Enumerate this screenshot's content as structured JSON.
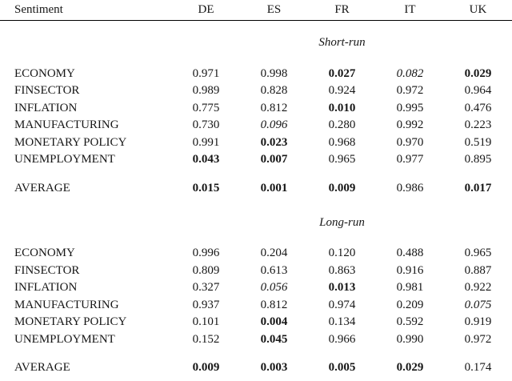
{
  "table": {
    "header": {
      "label": "Sentiment",
      "columns": [
        "DE",
        "ES",
        "FR",
        "IT",
        "UK"
      ]
    },
    "sections": [
      {
        "title": "Short-run",
        "rows": [
          {
            "label": "ECONOMY",
            "cells": [
              {
                "text": "0.971",
                "style": "normal"
              },
              {
                "text": "0.998",
                "style": "normal"
              },
              {
                "text": "0.027",
                "style": "bold"
              },
              {
                "text": "0.082",
                "style": "italic"
              },
              {
                "text": "0.029",
                "style": "bold"
              }
            ]
          },
          {
            "label": "FINSECTOR",
            "cells": [
              {
                "text": "0.989",
                "style": "normal"
              },
              {
                "text": "0.828",
                "style": "normal"
              },
              {
                "text": "0.924",
                "style": "normal"
              },
              {
                "text": "0.972",
                "style": "normal"
              },
              {
                "text": "0.964",
                "style": "normal"
              }
            ]
          },
          {
            "label": "INFLATION",
            "cells": [
              {
                "text": "0.775",
                "style": "normal"
              },
              {
                "text": "0.812",
                "style": "normal"
              },
              {
                "text": "0.010",
                "style": "bold"
              },
              {
                "text": "0.995",
                "style": "normal"
              },
              {
                "text": "0.476",
                "style": "normal"
              }
            ]
          },
          {
            "label": "MANUFACTURING",
            "cells": [
              {
                "text": "0.730",
                "style": "normal"
              },
              {
                "text": "0.096",
                "style": "italic"
              },
              {
                "text": "0.280",
                "style": "normal"
              },
              {
                "text": "0.992",
                "style": "normal"
              },
              {
                "text": "0.223",
                "style": "normal"
              }
            ]
          },
          {
            "label": "MONETARY POLICY",
            "cells": [
              {
                "text": "0.991",
                "style": "normal"
              },
              {
                "text": "0.023",
                "style": "bold"
              },
              {
                "text": "0.968",
                "style": "normal"
              },
              {
                "text": "0.970",
                "style": "normal"
              },
              {
                "text": "0.519",
                "style": "normal"
              }
            ]
          },
          {
            "label": "UNEMPLOYMENT",
            "cells": [
              {
                "text": "0.043",
                "style": "bold"
              },
              {
                "text": "0.007",
                "style": "bold"
              },
              {
                "text": "0.965",
                "style": "normal"
              },
              {
                "text": "0.977",
                "style": "normal"
              },
              {
                "text": "0.895",
                "style": "normal"
              }
            ]
          },
          {
            "label": "AVERAGE",
            "cells": [
              {
                "text": "0.015",
                "style": "bold"
              },
              {
                "text": "0.001",
                "style": "bold"
              },
              {
                "text": "0.009",
                "style": "bold"
              },
              {
                "text": "0.986",
                "style": "normal"
              },
              {
                "text": "0.017",
                "style": "bold"
              }
            ]
          }
        ]
      },
      {
        "title": "Long-run",
        "rows": [
          {
            "label": "ECONOMY",
            "cells": [
              {
                "text": "0.996",
                "style": "normal"
              },
              {
                "text": "0.204",
                "style": "normal"
              },
              {
                "text": "0.120",
                "style": "normal"
              },
              {
                "text": "0.488",
                "style": "normal"
              },
              {
                "text": "0.965",
                "style": "normal"
              }
            ]
          },
          {
            "label": "FINSECTOR",
            "cells": [
              {
                "text": "0.809",
                "style": "normal"
              },
              {
                "text": "0.613",
                "style": "normal"
              },
              {
                "text": "0.863",
                "style": "normal"
              },
              {
                "text": "0.916",
                "style": "normal"
              },
              {
                "text": "0.887",
                "style": "normal"
              }
            ]
          },
          {
            "label": "INFLATION",
            "cells": [
              {
                "text": "0.327",
                "style": "normal"
              },
              {
                "text": "0.056",
                "style": "italic"
              },
              {
                "text": "0.013",
                "style": "bold"
              },
              {
                "text": "0.981",
                "style": "normal"
              },
              {
                "text": "0.922",
                "style": "normal"
              }
            ]
          },
          {
            "label": "MANUFACTURING",
            "cells": [
              {
                "text": "0.937",
                "style": "normal"
              },
              {
                "text": "0.812",
                "style": "normal"
              },
              {
                "text": "0.974",
                "style": "normal"
              },
              {
                "text": "0.209",
                "style": "normal"
              },
              {
                "text": "0.075",
                "style": "italic"
              }
            ]
          },
          {
            "label": "MONETARY POLICY",
            "cells": [
              {
                "text": "0.101",
                "style": "normal"
              },
              {
                "text": "0.004",
                "style": "bold"
              },
              {
                "text": "0.134",
                "style": "normal"
              },
              {
                "text": "0.592",
                "style": "normal"
              },
              {
                "text": "0.919",
                "style": "normal"
              }
            ]
          },
          {
            "label": "UNEMPLOYMENT",
            "cells": [
              {
                "text": "0.152",
                "style": "normal"
              },
              {
                "text": "0.045",
                "style": "bold"
              },
              {
                "text": "0.966",
                "style": "normal"
              },
              {
                "text": "0.990",
                "style": "normal"
              },
              {
                "text": "0.972",
                "style": "normal"
              }
            ]
          },
          {
            "label": "AVERAGE",
            "cells": [
              {
                "text": "0.009",
                "style": "bold"
              },
              {
                "text": "0.003",
                "style": "bold"
              },
              {
                "text": "0.005",
                "style": "bold"
              },
              {
                "text": "0.029",
                "style": "bold"
              },
              {
                "text": "0.174",
                "style": "normal"
              }
            ]
          }
        ]
      }
    ]
  },
  "chart_data": {
    "type": "table",
    "columns": [
      "Sentiment",
      "DE",
      "ES",
      "FR",
      "IT",
      "UK"
    ],
    "sections": [
      {
        "title": "Short-run",
        "rows": [
          [
            "ECONOMY",
            0.971,
            0.998,
            0.027,
            0.082,
            0.029
          ],
          [
            "FINSECTOR",
            0.989,
            0.828,
            0.924,
            0.972,
            0.964
          ],
          [
            "INFLATION",
            0.775,
            0.812,
            0.01,
            0.995,
            0.476
          ],
          [
            "MANUFACTURING",
            0.73,
            0.096,
            0.28,
            0.992,
            0.223
          ],
          [
            "MONETARY POLICY",
            0.991,
            0.023,
            0.968,
            0.97,
            0.519
          ],
          [
            "UNEMPLOYMENT",
            0.043,
            0.007,
            0.965,
            0.977,
            0.895
          ],
          [
            "AVERAGE",
            0.015,
            0.001,
            0.009,
            0.986,
            0.017
          ]
        ]
      },
      {
        "title": "Long-run",
        "rows": [
          [
            "ECONOMY",
            0.996,
            0.204,
            0.12,
            0.488,
            0.965
          ],
          [
            "FINSECTOR",
            0.809,
            0.613,
            0.863,
            0.916,
            0.887
          ],
          [
            "INFLATION",
            0.327,
            0.056,
            0.013,
            0.981,
            0.922
          ],
          [
            "MANUFACTURING",
            0.937,
            0.812,
            0.974,
            0.209,
            0.075
          ],
          [
            "MONETARY POLICY",
            0.101,
            0.004,
            0.134,
            0.592,
            0.919
          ],
          [
            "UNEMPLOYMENT",
            0.152,
            0.045,
            0.966,
            0.99,
            0.972
          ],
          [
            "AVERAGE",
            0.009,
            0.003,
            0.005,
            0.029,
            0.174
          ]
        ]
      }
    ]
  }
}
